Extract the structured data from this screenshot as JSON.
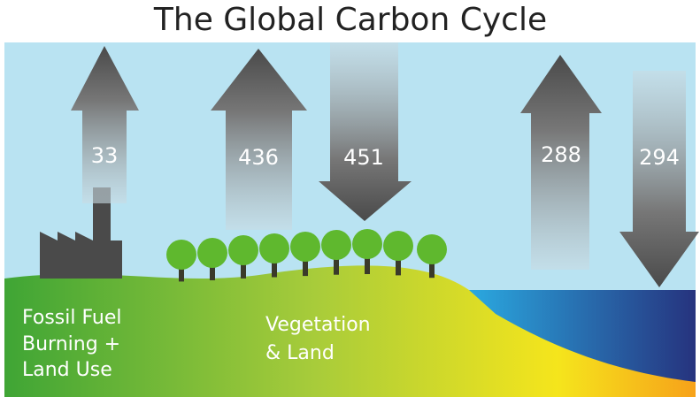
{
  "title": "The Global Carbon Cycle",
  "arrows": [
    {
      "value": 33
    },
    {
      "value": 436
    },
    {
      "value": 451
    },
    {
      "value": 288
    },
    {
      "value": 294
    }
  ],
  "regions": [
    {
      "lines": [
        "Fossil Fuel",
        "Burning +",
        "Land Use"
      ]
    },
    {
      "lines": [
        "Vegetation",
        "& Land"
      ]
    }
  ]
}
